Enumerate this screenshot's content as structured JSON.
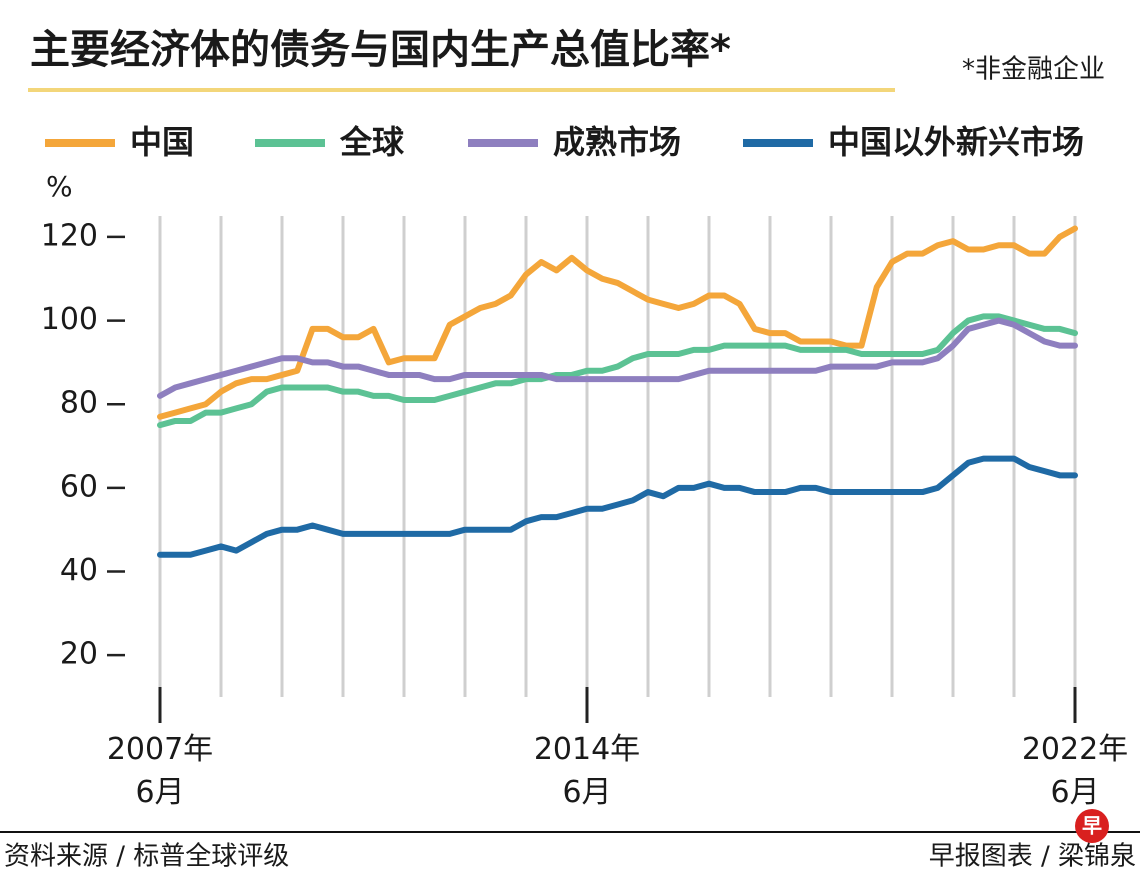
{
  "chart_data": {
    "type": "line",
    "title": "主要经济体的债务与国内生产总值比率*",
    "note": "*非金融企业",
    "y_unit": "%",
    "source": "资料来源 / 标普全球评级",
    "credit": "早报图表 / 梁锦泉",
    "logo": "早",
    "xlim": [
      2007.5,
      2022.5
    ],
    "xticks": [
      {
        "value": 2007.5,
        "label": "2007年\n6月"
      },
      {
        "value": 2014.5,
        "label": "2014年\n6月"
      },
      {
        "value": 2022.5,
        "label": "2022年\n6月"
      }
    ],
    "ylim": [
      10,
      125
    ],
    "yticks": [
      20,
      40,
      60,
      80,
      100,
      120
    ],
    "grid": true,
    "x": [
      2007.5,
      2007.75,
      2008,
      2008.25,
      2008.5,
      2008.75,
      2009,
      2009.25,
      2009.5,
      2009.75,
      2010,
      2010.25,
      2010.5,
      2010.75,
      2011,
      2011.25,
      2011.5,
      2011.75,
      2012,
      2012.25,
      2012.5,
      2012.75,
      2013,
      2013.25,
      2013.5,
      2013.75,
      2014,
      2014.25,
      2014.5,
      2014.75,
      2015,
      2015.25,
      2015.5,
      2015.75,
      2016,
      2016.25,
      2016.5,
      2016.75,
      2017,
      2017.25,
      2017.5,
      2017.75,
      2018,
      2018.25,
      2018.5,
      2018.75,
      2019,
      2019.25,
      2019.5,
      2019.75,
      2020,
      2020.25,
      2020.5,
      2020.75,
      2021,
      2021.25,
      2021.5,
      2021.75,
      2022,
      2022.25,
      2022.5
    ],
    "series": [
      {
        "name": "中国",
        "color": "#f4a63a",
        "values": [
          77,
          78,
          79,
          80,
          83,
          85,
          86,
          86,
          87,
          88,
          98,
          98,
          96,
          96,
          98,
          90,
          91,
          91,
          91,
          99,
          101,
          103,
          104,
          106,
          111,
          114,
          112,
          115,
          112,
          110,
          109,
          107,
          105,
          104,
          103,
          104,
          106,
          106,
          104,
          98,
          97,
          97,
          95,
          95,
          95,
          94,
          94,
          108,
          114,
          116,
          116,
          118,
          119,
          117,
          117,
          118,
          118,
          116,
          116,
          120,
          122
        ]
      },
      {
        "name": "全球",
        "color": "#5cc294",
        "values": [
          75,
          76,
          76,
          78,
          78,
          79,
          80,
          83,
          84,
          84,
          84,
          84,
          83,
          83,
          82,
          82,
          81,
          81,
          81,
          82,
          83,
          84,
          85,
          85,
          86,
          86,
          87,
          87,
          88,
          88,
          89,
          91,
          92,
          92,
          92,
          93,
          93,
          94,
          94,
          94,
          94,
          94,
          93,
          93,
          93,
          93,
          92,
          92,
          92,
          92,
          92,
          93,
          97,
          100,
          101,
          101,
          100,
          99,
          98,
          98,
          97
        ]
      },
      {
        "name": "成熟市场",
        "color": "#8e7fbf",
        "values": [
          82,
          84,
          85,
          86,
          87,
          88,
          89,
          90,
          91,
          91,
          90,
          90,
          89,
          89,
          88,
          87,
          87,
          87,
          86,
          86,
          87,
          87,
          87,
          87,
          87,
          87,
          86,
          86,
          86,
          86,
          86,
          86,
          86,
          86,
          86,
          87,
          88,
          88,
          88,
          88,
          88,
          88,
          88,
          88,
          89,
          89,
          89,
          89,
          90,
          90,
          90,
          91,
          94,
          98,
          99,
          100,
          99,
          97,
          95,
          94,
          94
        ]
      },
      {
        "name": "中国以外新兴市场",
        "color": "#1f6aa5",
        "values": [
          44,
          44,
          44,
          45,
          46,
          45,
          47,
          49,
          50,
          50,
          51,
          50,
          49,
          49,
          49,
          49,
          49,
          49,
          49,
          49,
          50,
          50,
          50,
          50,
          52,
          53,
          53,
          54,
          55,
          55,
          56,
          57,
          59,
          58,
          60,
          60,
          61,
          60,
          60,
          59,
          59,
          59,
          60,
          60,
          59,
          59,
          59,
          59,
          59,
          59,
          59,
          60,
          63,
          66,
          67,
          67,
          67,
          65,
          64,
          63,
          63
        ]
      }
    ]
  }
}
